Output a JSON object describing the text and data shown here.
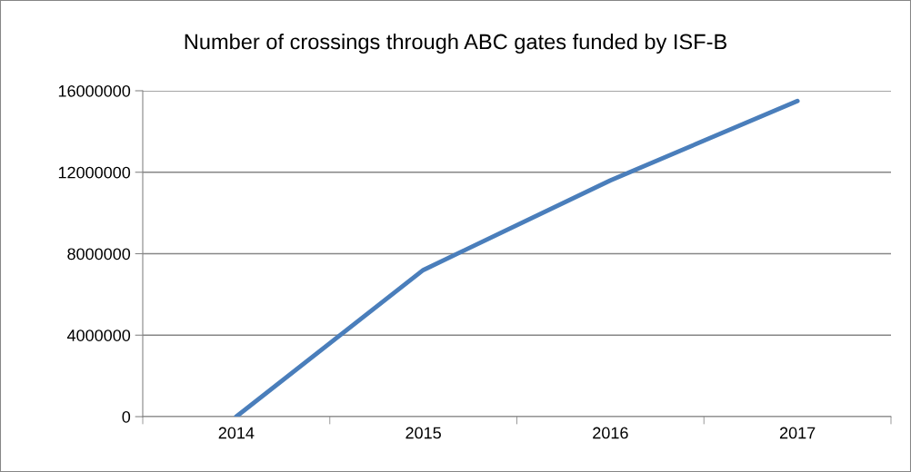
{
  "chart_data": {
    "type": "line",
    "title": "Number of crossings through ABC gates funded by ISF-B",
    "categories": [
      "2014",
      "2015",
      "2016",
      "2017"
    ],
    "series": [
      {
        "color": "#4a7ebb",
        "values": [
          0,
          7200000,
          11600000,
          15500000
        ]
      }
    ],
    "ylim": [
      0,
      16000000
    ],
    "yticks": [
      0,
      4000000,
      8000000,
      12000000,
      16000000
    ],
    "grid": "y",
    "legend": false,
    "marker": "none",
    "line_style": "solid"
  }
}
